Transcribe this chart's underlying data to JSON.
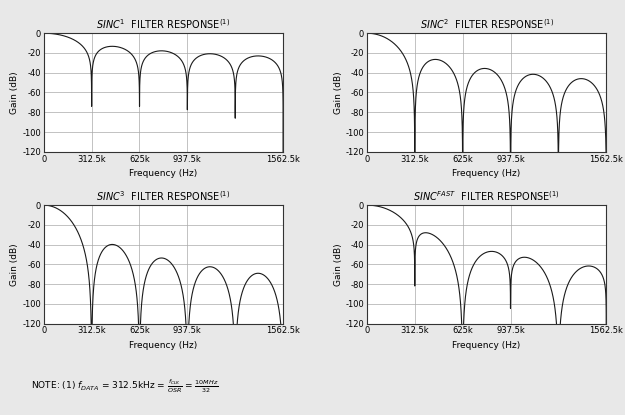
{
  "titles": [
    "SINC¹ FILTER RESPONSE⁽¹⁾",
    "SINC² FILTER RESPONSE⁽¹⁾",
    "SINC³ FILTER RESPONSE⁽¹⁾",
    "SINCᶠᴬˢᵀ FILTER RESPONSE⁽¹⁾"
  ],
  "sinc_orders": [
    1,
    2,
    3,
    "fast"
  ],
  "f_data": 312500,
  "f_clk": 10000000,
  "osr": 32,
  "xlim": [
    0,
    1562500
  ],
  "ylim": [
    -120,
    0
  ],
  "xticks": [
    0,
    312500,
    625000,
    937500,
    1562500
  ],
  "xtick_labels": [
    "0",
    "312.5k",
    "625k",
    "937.5k",
    "1562.5k"
  ],
  "yticks": [
    0,
    -20,
    -40,
    -60,
    -80,
    -100,
    -120
  ],
  "xlabel": "Frequency (Hz)",
  "ylabel": "Gain (dB)",
  "line_color": "#1a1a1a",
  "grid_color": "#aaaaaa",
  "background_color": "#ffffff",
  "outer_background": "#f0f0f0",
  "note_text": "NOTE: (1) f",
  "title_fontsize": 7,
  "axis_fontsize": 6.5,
  "tick_fontsize": 6
}
